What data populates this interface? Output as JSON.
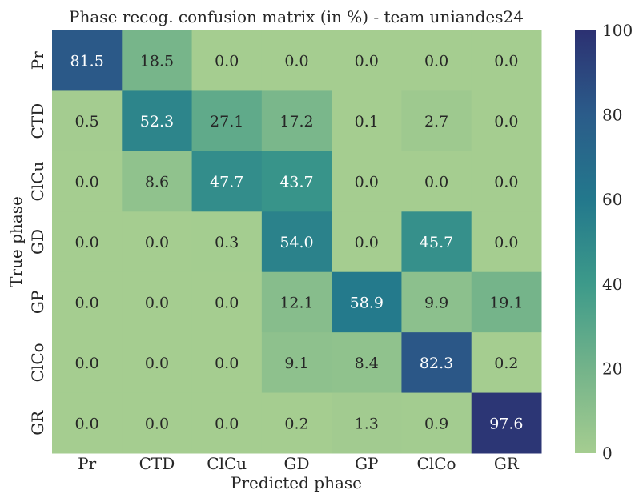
{
  "chart_data": {
    "type": "heatmap",
    "title": "Phase recog. confusion matrix (in %) - team uniandes24",
    "xlabel": "Predicted phase",
    "ylabel": "True phase",
    "x_categories": [
      "Pr",
      "CTD",
      "ClCu",
      "GD",
      "GP",
      "ClCo",
      "GR"
    ],
    "y_categories": [
      "Pr",
      "CTD",
      "ClCu",
      "GD",
      "GP",
      "ClCo",
      "GR"
    ],
    "values": [
      [
        81.5,
        18.5,
        0.0,
        0.0,
        0.0,
        0.0,
        0.0
      ],
      [
        0.5,
        52.3,
        27.1,
        17.2,
        0.1,
        2.7,
        0.0
      ],
      [
        0.0,
        8.6,
        47.7,
        43.7,
        0.0,
        0.0,
        0.0
      ],
      [
        0.0,
        0.0,
        0.3,
        54.0,
        0.0,
        45.7,
        0.0
      ],
      [
        0.0,
        0.0,
        0.0,
        12.1,
        58.9,
        9.9,
        19.1
      ],
      [
        0.0,
        0.0,
        0.0,
        9.1,
        8.4,
        82.3,
        0.2
      ],
      [
        0.0,
        0.0,
        0.0,
        0.2,
        1.3,
        0.9,
        97.6
      ]
    ],
    "value_range": [
      0,
      100
    ],
    "colorbar_ticks": [
      0,
      20,
      40,
      60,
      80,
      100
    ],
    "colormap": "crest",
    "colormap_stops": [
      "#a5cd90",
      "#73b38a",
      "#3d9a8a",
      "#23788c",
      "#2b5c8a",
      "#2c3172"
    ],
    "grid": false
  }
}
